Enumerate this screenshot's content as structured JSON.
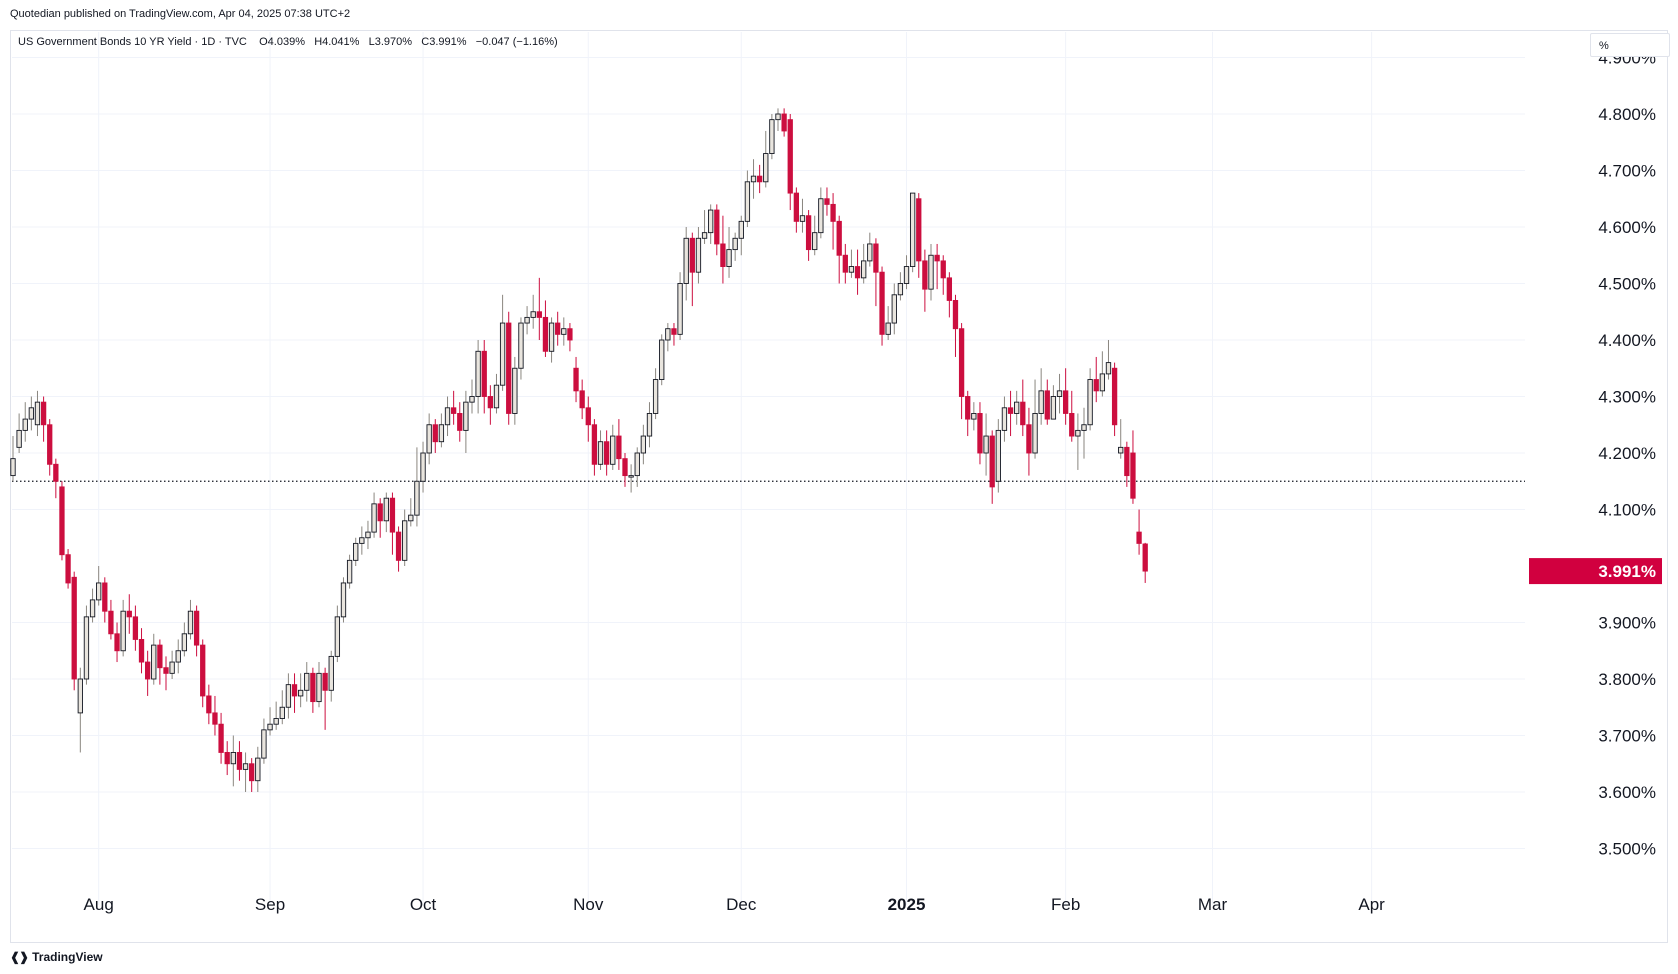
{
  "published": "Quotedian published on TradingView.com, Apr 04, 2025 07:38 UTC+2",
  "legend": {
    "symbol": "US Government Bonds 10 YR Yield · 1D · TVC",
    "open": "O4.039%",
    "high": "H4.041%",
    "low": "L3.970%",
    "close": "C3.991%",
    "change": "−0.047 (−1.16%)"
  },
  "unit_label": "%",
  "brand": "TradingView",
  "colors": {
    "up": "#9e9a94",
    "down": "#cc0e3f",
    "grid": "#f0f3fa",
    "reference_line": "#131722",
    "last_price_bg": "#d1003f"
  },
  "chart_data": {
    "type": "candlestick",
    "symbol": "US Government Bonds 10 YR Yield",
    "interval": "1D",
    "y_unit": "%",
    "ylim": [
      3.5,
      4.9
    ],
    "y_ticks": [
      "4.900%",
      "4.800%",
      "4.700%",
      "4.600%",
      "4.500%",
      "4.400%",
      "4.300%",
      "4.200%",
      "4.100%",
      "3.900%",
      "3.800%",
      "3.700%",
      "3.600%",
      "3.500%"
    ],
    "x_ticks": [
      {
        "label": "Aug",
        "index": 14
      },
      {
        "label": "Sep",
        "index": 42
      },
      {
        "label": "Oct",
        "index": 67
      },
      {
        "label": "Nov",
        "index": 94
      },
      {
        "label": "Dec",
        "index": 119
      },
      {
        "label": "2025",
        "index": 146
      },
      {
        "label": "Feb",
        "index": 172
      },
      {
        "label": "Mar",
        "index": 196
      },
      {
        "label": "Apr",
        "index": 222
      }
    ],
    "reference_line": 4.15,
    "last_price": {
      "label": "3.991%",
      "value": 3.991
    },
    "candles": [
      [
        4.16,
        4.19,
        4.23,
        4.15
      ],
      [
        4.21,
        4.24,
        4.27,
        4.2
      ],
      [
        4.24,
        4.26,
        4.29,
        4.22
      ],
      [
        4.26,
        4.28,
        4.3,
        4.24
      ],
      [
        4.25,
        4.29,
        4.31,
        4.23
      ],
      [
        4.29,
        4.25,
        4.3,
        4.22
      ],
      [
        4.25,
        4.18,
        4.26,
        4.16
      ],
      [
        4.18,
        4.15,
        4.19,
        4.12
      ],
      [
        4.14,
        4.02,
        4.15,
        4.01
      ],
      [
        4.02,
        3.97,
        4.03,
        3.96
      ],
      [
        3.98,
        3.8,
        3.99,
        3.78
      ],
      [
        3.74,
        3.8,
        3.82,
        3.67
      ],
      [
        3.8,
        3.91,
        3.93,
        3.79
      ],
      [
        3.91,
        3.94,
        3.96,
        3.9
      ],
      [
        3.94,
        3.97,
        4.0,
        3.93
      ],
      [
        3.97,
        3.92,
        3.98,
        3.9
      ],
      [
        3.92,
        3.88,
        3.94,
        3.87
      ],
      [
        3.88,
        3.85,
        3.9,
        3.83
      ],
      [
        3.85,
        3.92,
        3.94,
        3.84
      ],
      [
        3.92,
        3.91,
        3.95,
        3.88
      ],
      [
        3.91,
        3.87,
        3.93,
        3.85
      ],
      [
        3.87,
        3.83,
        3.89,
        3.81
      ],
      [
        3.83,
        3.8,
        3.85,
        3.77
      ],
      [
        3.8,
        3.86,
        3.88,
        3.79
      ],
      [
        3.86,
        3.82,
        3.87,
        3.79
      ],
      [
        3.82,
        3.81,
        3.84,
        3.78
      ],
      [
        3.81,
        3.83,
        3.85,
        3.8
      ],
      [
        3.83,
        3.85,
        3.87,
        3.81
      ],
      [
        3.85,
        3.88,
        3.9,
        3.84
      ],
      [
        3.88,
        3.92,
        3.94,
        3.87
      ],
      [
        3.92,
        3.86,
        3.93,
        3.84
      ],
      [
        3.86,
        3.77,
        3.87,
        3.75
      ],
      [
        3.77,
        3.74,
        3.79,
        3.72
      ],
      [
        3.74,
        3.72,
        3.77,
        3.7
      ],
      [
        3.72,
        3.67,
        3.74,
        3.65
      ],
      [
        3.67,
        3.65,
        3.69,
        3.63
      ],
      [
        3.65,
        3.67,
        3.7,
        3.61
      ],
      [
        3.67,
        3.64,
        3.69,
        3.62
      ],
      [
        3.64,
        3.65,
        3.67,
        3.6
      ],
      [
        3.65,
        3.62,
        3.66,
        3.6
      ],
      [
        3.62,
        3.66,
        3.68,
        3.6
      ],
      [
        3.66,
        3.71,
        3.73,
        3.65
      ],
      [
        3.71,
        3.72,
        3.75,
        3.7
      ],
      [
        3.72,
        3.73,
        3.76,
        3.71
      ],
      [
        3.73,
        3.75,
        3.78,
        3.72
      ],
      [
        3.75,
        3.79,
        3.81,
        3.73
      ],
      [
        3.79,
        3.77,
        3.81,
        3.74
      ],
      [
        3.77,
        3.78,
        3.81,
        3.75
      ],
      [
        3.78,
        3.81,
        3.83,
        3.76
      ],
      [
        3.81,
        3.76,
        3.82,
        3.74
      ],
      [
        3.76,
        3.81,
        3.83,
        3.75
      ],
      [
        3.81,
        3.78,
        3.82,
        3.71
      ],
      [
        3.78,
        3.84,
        3.85,
        3.76
      ],
      [
        3.84,
        3.91,
        3.93,
        3.83
      ],
      [
        3.91,
        3.97,
        3.98,
        3.9
      ],
      [
        3.97,
        4.01,
        4.02,
        3.96
      ],
      [
        4.01,
        4.04,
        4.05,
        4.0
      ],
      [
        4.04,
        4.05,
        4.07,
        4.02
      ],
      [
        4.05,
        4.06,
        4.08,
        4.03
      ],
      [
        4.06,
        4.11,
        4.13,
        4.05
      ],
      [
        4.11,
        4.08,
        4.12,
        4.05
      ],
      [
        4.08,
        4.12,
        4.13,
        4.06
      ],
      [
        4.12,
        4.06,
        4.13,
        4.02
      ],
      [
        4.06,
        4.01,
        4.07,
        3.99
      ],
      [
        4.01,
        4.08,
        4.1,
        4.0
      ],
      [
        4.08,
        4.09,
        4.12,
        4.07
      ],
      [
        4.09,
        4.15,
        4.21,
        4.07
      ],
      [
        4.15,
        4.2,
        4.22,
        4.13
      ],
      [
        4.2,
        4.25,
        4.27,
        4.18
      ],
      [
        4.25,
        4.22,
        4.26,
        4.2
      ],
      [
        4.22,
        4.25,
        4.27,
        4.21
      ],
      [
        4.25,
        4.28,
        4.3,
        4.23
      ],
      [
        4.28,
        4.27,
        4.31,
        4.25
      ],
      [
        4.27,
        4.24,
        4.29,
        4.22
      ],
      [
        4.24,
        4.29,
        4.31,
        4.2
      ],
      [
        4.29,
        4.3,
        4.33,
        4.27
      ],
      [
        4.3,
        4.38,
        4.4,
        4.27
      ],
      [
        4.38,
        4.3,
        4.4,
        4.27
      ],
      [
        4.3,
        4.28,
        4.32,
        4.25
      ],
      [
        4.28,
        4.32,
        4.34,
        4.27
      ],
      [
        4.32,
        4.43,
        4.48,
        4.31
      ],
      [
        4.43,
        4.27,
        4.45,
        4.25
      ],
      [
        4.27,
        4.35,
        4.37,
        4.25
      ],
      [
        4.35,
        4.43,
        4.44,
        4.33
      ],
      [
        4.43,
        4.44,
        4.46,
        4.41
      ],
      [
        4.44,
        4.45,
        4.48,
        4.42
      ],
      [
        4.45,
        4.44,
        4.51,
        4.4
      ],
      [
        4.44,
        4.38,
        4.47,
        4.37
      ],
      [
        4.38,
        4.43,
        4.44,
        4.36
      ],
      [
        4.43,
        4.41,
        4.45,
        4.39
      ],
      [
        4.41,
        4.42,
        4.44,
        4.39
      ],
      [
        4.42,
        4.4,
        4.43,
        4.38
      ],
      [
        4.35,
        4.31,
        4.37,
        4.29
      ],
      [
        4.31,
        4.28,
        4.33,
        4.26
      ],
      [
        4.28,
        4.25,
        4.3,
        4.22
      ],
      [
        4.25,
        4.18,
        4.26,
        4.16
      ],
      [
        4.18,
        4.22,
        4.24,
        4.17
      ],
      [
        4.22,
        4.18,
        4.24,
        4.16
      ],
      [
        4.18,
        4.23,
        4.25,
        4.17
      ],
      [
        4.23,
        4.19,
        4.26,
        4.17
      ],
      [
        4.19,
        4.16,
        4.2,
        4.14
      ],
      [
        4.16,
        4.16,
        4.18,
        4.13
      ],
      [
        4.16,
        4.2,
        4.21,
        4.14
      ],
      [
        4.2,
        4.23,
        4.25,
        4.18
      ],
      [
        4.23,
        4.27,
        4.29,
        4.21
      ],
      [
        4.27,
        4.33,
        4.35,
        4.26
      ],
      [
        4.33,
        4.4,
        4.41,
        4.32
      ],
      [
        4.4,
        4.42,
        4.43,
        4.38
      ],
      [
        4.42,
        4.41,
        4.43,
        4.39
      ],
      [
        4.41,
        4.5,
        4.52,
        4.4
      ],
      [
        4.5,
        4.58,
        4.6,
        4.47
      ],
      [
        4.58,
        4.52,
        4.59,
        4.46
      ],
      [
        4.52,
        4.58,
        4.6,
        4.5
      ],
      [
        4.58,
        4.59,
        4.63,
        4.57
      ],
      [
        4.59,
        4.63,
        4.64,
        4.57
      ],
      [
        4.63,
        4.57,
        4.64,
        4.55
      ],
      [
        4.57,
        4.53,
        4.62,
        4.5
      ],
      [
        4.53,
        4.56,
        4.6,
        4.51
      ],
      [
        4.56,
        4.58,
        4.59,
        4.54
      ],
      [
        4.58,
        4.61,
        4.62,
        4.55
      ],
      [
        4.61,
        4.68,
        4.7,
        4.6
      ],
      [
        4.68,
        4.69,
        4.72,
        4.65
      ],
      [
        4.69,
        4.68,
        4.71,
        4.66
      ],
      [
        4.68,
        4.73,
        4.77,
        4.67
      ],
      [
        4.73,
        4.79,
        4.8,
        4.72
      ],
      [
        4.79,
        4.8,
        4.81,
        4.77
      ],
      [
        4.8,
        4.77,
        4.81,
        4.76
      ],
      [
        4.79,
        4.66,
        4.8,
        4.63
      ],
      [
        4.66,
        4.61,
        4.67,
        4.59
      ],
      [
        4.61,
        4.62,
        4.65,
        4.59
      ],
      [
        4.62,
        4.56,
        4.63,
        4.54
      ],
      [
        4.56,
        4.59,
        4.62,
        4.55
      ],
      [
        4.59,
        4.65,
        4.67,
        4.58
      ],
      [
        4.65,
        4.64,
        4.67,
        4.62
      ],
      [
        4.64,
        4.61,
        4.66,
        4.56
      ],
      [
        4.61,
        4.55,
        4.62,
        4.5
      ],
      [
        4.55,
        4.52,
        4.57,
        4.5
      ],
      [
        4.52,
        4.53,
        4.56,
        4.51
      ],
      [
        4.53,
        4.51,
        4.56,
        4.48
      ],
      [
        4.51,
        4.54,
        4.57,
        4.5
      ],
      [
        4.54,
        4.57,
        4.59,
        4.53
      ],
      [
        4.57,
        4.52,
        4.58,
        4.46
      ],
      [
        4.52,
        4.41,
        4.53,
        4.39
      ],
      [
        4.41,
        4.43,
        4.46,
        4.4
      ],
      [
        4.43,
        4.48,
        4.5,
        4.41
      ],
      [
        4.48,
        4.5,
        4.52,
        4.47
      ],
      [
        4.5,
        4.53,
        4.55,
        4.49
      ],
      [
        4.53,
        4.66,
        4.66,
        4.52
      ],
      [
        4.65,
        4.54,
        4.66,
        4.51
      ],
      [
        4.54,
        4.49,
        4.56,
        4.45
      ],
      [
        4.49,
        4.55,
        4.57,
        4.47
      ],
      [
        4.55,
        4.54,
        4.57,
        4.49
      ],
      [
        4.54,
        4.51,
        4.55,
        4.48
      ],
      [
        4.51,
        4.47,
        4.52,
        4.44
      ],
      [
        4.47,
        4.42,
        4.48,
        4.37
      ],
      [
        4.42,
        4.3,
        4.43,
        4.26
      ],
      [
        4.3,
        4.26,
        4.31,
        4.23
      ],
      [
        4.26,
        4.27,
        4.29,
        4.24
      ],
      [
        4.27,
        4.2,
        4.29,
        4.18
      ],
      [
        4.2,
        4.23,
        4.27,
        4.16
      ],
      [
        4.23,
        4.14,
        4.24,
        4.11
      ],
      [
        4.15,
        4.24,
        4.26,
        4.13
      ],
      [
        4.24,
        4.28,
        4.3,
        4.22
      ],
      [
        4.28,
        4.27,
        4.31,
        4.23
      ],
      [
        4.27,
        4.29,
        4.31,
        4.25
      ],
      [
        4.29,
        4.25,
        4.33,
        4.23
      ],
      [
        4.25,
        4.2,
        4.28,
        4.16
      ],
      [
        4.2,
        4.27,
        4.33,
        4.19
      ],
      [
        4.27,
        4.31,
        4.35,
        4.25
      ],
      [
        4.31,
        4.26,
        4.33,
        4.25
      ],
      [
        4.26,
        4.3,
        4.32,
        4.27
      ],
      [
        4.3,
        4.31,
        4.34,
        4.27
      ],
      [
        4.31,
        4.27,
        4.35,
        4.25
      ],
      [
        4.27,
        4.23,
        4.31,
        4.22
      ],
      [
        4.23,
        4.24,
        4.27,
        4.17
      ],
      [
        4.24,
        4.25,
        4.28,
        4.19
      ],
      [
        4.25,
        4.33,
        4.35,
        4.24
      ],
      [
        4.33,
        4.31,
        4.37,
        4.29
      ],
      [
        4.31,
        4.34,
        4.38,
        4.3
      ],
      [
        4.34,
        4.36,
        4.4,
        4.33
      ],
      [
        4.35,
        4.25,
        4.36,
        4.23
      ],
      [
        4.2,
        4.21,
        4.26,
        4.19
      ],
      [
        4.21,
        4.16,
        4.22,
        4.14
      ],
      [
        4.2,
        4.12,
        4.24,
        4.11
      ],
      [
        4.06,
        4.04,
        4.1,
        4.02
      ],
      [
        4.039,
        3.991,
        4.041,
        3.97
      ]
    ]
  }
}
